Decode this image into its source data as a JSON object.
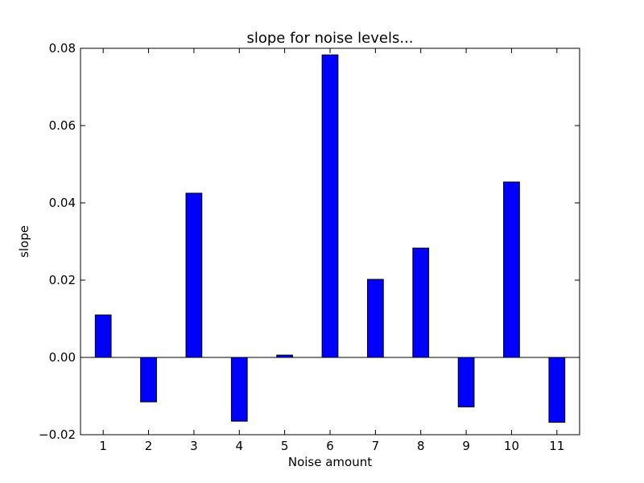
{
  "chart_data": {
    "type": "bar",
    "title": "slope for noise levels...",
    "xlabel": "Noise amount",
    "ylabel": "slope",
    "categories": [
      "1",
      "2",
      "3",
      "4",
      "5",
      "6",
      "7",
      "8",
      "9",
      "10",
      "11"
    ],
    "values": [
      0.011,
      -0.0115,
      0.0425,
      -0.0165,
      0.0006,
      0.0783,
      0.0202,
      0.0283,
      -0.0128,
      0.0454,
      -0.0168
    ],
    "ylim": [
      -0.02,
      0.08
    ],
    "yticks": [
      "−0.02",
      "0.00",
      "0.02",
      "0.04",
      "0.06",
      "0.08"
    ],
    "ytick_values": [
      -0.02,
      0.0,
      0.02,
      0.04,
      0.06,
      0.08
    ],
    "bar_color": "#0000ff",
    "grid": false,
    "zero_line": true
  }
}
